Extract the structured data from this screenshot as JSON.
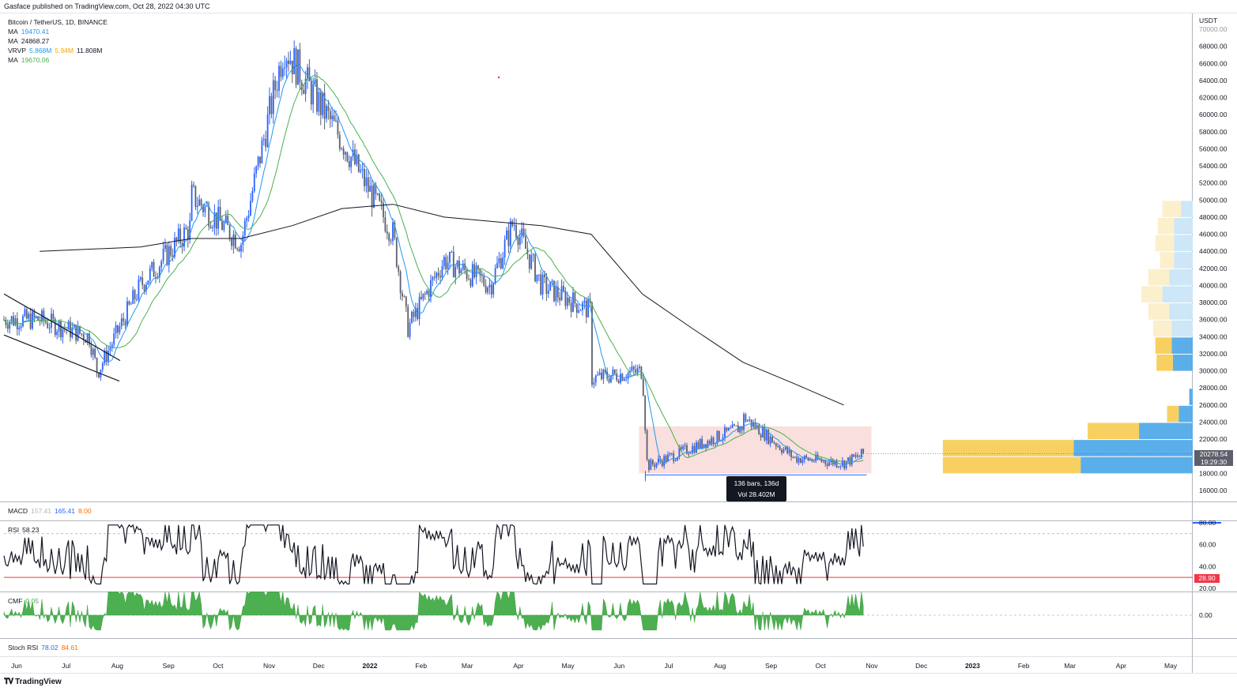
{
  "header": {
    "published": "Gasface published on TradingView.com, Oct 28, 2022 04:30 UTC"
  },
  "footer": {
    "logo_text": "TradingView"
  },
  "legend": {
    "symbol": "Bitcoin / TetherUS, 1D, BINANCE",
    "ma1_label": "MA",
    "ma1_value": "19470.41",
    "ma2_label": "MA",
    "ma2_value": "24868.27",
    "vrvp_label": "VRVP",
    "vrvp_v1": "5.868M",
    "vrvp_v2": "5.94M",
    "vrvp_v3": "11.808M",
    "ma3_label": "MA",
    "ma3_value": "19670.06"
  },
  "indicators": {
    "macd_label": "MACD",
    "macd_v1": "157.41",
    "macd_v2": "165.41",
    "macd_v3": "8.00",
    "rsi_label": "RSI",
    "rsi_value": "58.23",
    "cmf_label": "CMF",
    "cmf_value": "0.05",
    "stoch_label": "Stoch RSI",
    "stoch_v1": "78.02",
    "stoch_v2": "84.61"
  },
  "tooltip": {
    "line1": "136 bars, 136d",
    "line2": "Vol 28.402M"
  },
  "price_badge": {
    "price": "20278.54",
    "countdown": "19:29:30"
  },
  "rsi_badge": "28.90",
  "colors": {
    "up": "#2962ff",
    "down": "#5d606b",
    "ma_fast": "#2196f3",
    "ma_mid": "#4caf50",
    "ma_slow": "#131722",
    "range_fill": "#f8d7d4",
    "vp_up": "#5aaeea",
    "vp_down": "#f8d061"
  },
  "chart_data": {
    "type": "line",
    "title": "Bitcoin / TetherUS, 1D, BINANCE",
    "ylabel": "USDT",
    "ylim": [
      16000,
      70000
    ],
    "y_ticks": [
      "70000.00",
      "68000.00",
      "66000.00",
      "64000.00",
      "62000.00",
      "60000.00",
      "58000.00",
      "56000.00",
      "54000.00",
      "52000.00",
      "50000.00",
      "48000.00",
      "46000.00",
      "44000.00",
      "42000.00",
      "40000.00",
      "38000.00",
      "36000.00",
      "34000.00",
      "32000.00",
      "30000.00",
      "28000.00",
      "26000.00",
      "24000.00",
      "22000.00",
      "20000.00",
      "18000.00",
      "16000.00"
    ],
    "x_ticks": [
      "Jun",
      "Jul",
      "Aug",
      "Sep",
      "Oct",
      "Nov",
      "Dec",
      "2022",
      "Feb",
      "Mar",
      "Apr",
      "May",
      "Jun",
      "Jul",
      "Aug",
      "Sep",
      "Oct",
      "Nov",
      "Dec",
      "2023",
      "Feb",
      "Mar",
      "Apr",
      "May"
    ],
    "series": [
      {
        "name": "",
        "x": [
          "2021-06",
          "2021-07",
          "2021-07-20",
          "2021-08",
          "2021-09",
          "2021-09-07",
          "2021-10",
          "2021-11-10",
          "2021-12",
          "2022-01",
          "2022-01-24",
          "2022-02",
          "2022-03",
          "2022-03-29",
          "2022-04",
          "2022-05",
          "2022-05-12",
          "2022-06",
          "2022-06-18",
          "2022-07",
          "2022-08",
          "2022-08-14",
          "2022-09",
          "2022-10",
          "2022-10-27"
        ],
        "values": [
          36000,
          34000,
          29800,
          40000,
          47000,
          52000,
          45000,
          68000,
          57000,
          46000,
          35000,
          43000,
          40000,
          47500,
          40000,
          37000,
          29000,
          30000,
          18800,
          21000,
          23500,
          24800,
          19800,
          19200,
          20278
        ]
      },
      {
        "name": "",
        "x": [
          "2021-06",
          "2021-08",
          "2021-09",
          "2021-10",
          "2021-11",
          "2021-12",
          "2022-01",
          "2022-02",
          "2022-03",
          "2022-04",
          "2022-05",
          "2022-06",
          "2022-07",
          "2022-08",
          "2022-09",
          "2022-10"
        ],
        "values": [
          44000,
          44500,
          45500,
          45500,
          47000,
          49000,
          49500,
          48000,
          47500,
          47000,
          46000,
          39000,
          35000,
          31000,
          28500,
          26000
        ]
      }
    ],
    "ranges": [
      {
        "from": "2022-06-13",
        "to": "2022-10-27",
        "low": 18000,
        "high": 23500,
        "bars": "136 bars, 136d",
        "volume": "Vol 28.402M"
      }
    ],
    "rsi": {
      "ylim": [
        20,
        80
      ],
      "y_ticks": [
        "80.00",
        "60.00",
        "40.00",
        "20.00"
      ],
      "levels": [
        70,
        30
      ],
      "last": 58.23
    },
    "cmf": {
      "y_ticks": [
        "0.00"
      ],
      "last": 0.05
    },
    "volume_profile": [
      {
        "price": 19000,
        "up": 5.9,
        "down": 4.8
      },
      {
        "price": 21000,
        "up": 5.6,
        "down": 5.1
      },
      {
        "price": 23000,
        "up": 2.2,
        "down": 2.3
      },
      {
        "price": 25000,
        "up": 0.5,
        "down": 0.6
      },
      {
        "price": 27000,
        "up": 0.0,
        "down": 0.15
      },
      {
        "price": 31000,
        "up": 0.7,
        "down": 0.85
      },
      {
        "price": 33000,
        "up": 0.7,
        "down": 0.9
      },
      {
        "price": 35000,
        "up": 0.8,
        "down": 0.9
      },
      {
        "price": 37000,
        "up": 0.9,
        "down": 1.0
      },
      {
        "price": 39000,
        "up": 0.9,
        "down": 1.3
      },
      {
        "price": 41000,
        "up": 0.9,
        "down": 1.0
      },
      {
        "price": 43000,
        "up": 0.6,
        "down": 0.8
      },
      {
        "price": 45000,
        "up": 0.8,
        "down": 0.8
      },
      {
        "price": 47000,
        "up": 0.7,
        "down": 0.8
      },
      {
        "price": 49000,
        "up": 0.8,
        "down": 0.5
      }
    ]
  }
}
